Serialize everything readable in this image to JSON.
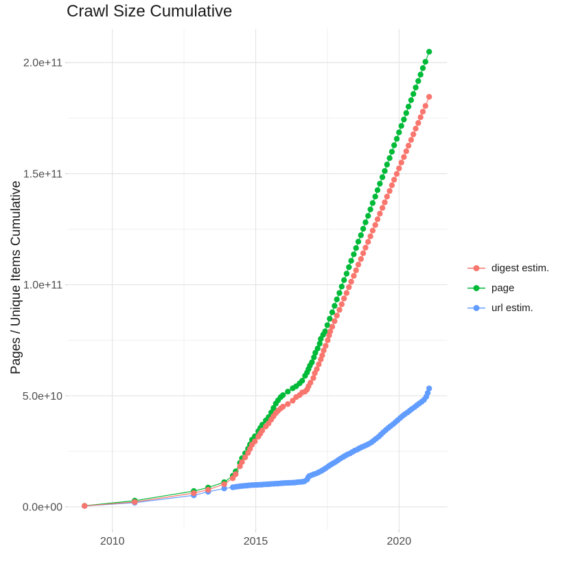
{
  "title": "Crawl Size Cumulative",
  "colors": {
    "background": "#FFFFFF",
    "major_grid": "#E4E4E4",
    "minor_grid": "#F0F0F0",
    "tick_mark": "#D2D2D2",
    "axis_text": "#4D4D4D",
    "text": "#1A1A1A",
    "digest": "#F8766D",
    "page": "#00BA38",
    "url": "#619CFF"
  },
  "chart_data": {
    "type": "scatter",
    "title": "Crawl Size Cumulative",
    "xlabel": "",
    "ylabel": "Pages / Unique Items Cumulative",
    "value_unit": "1e9 (billions); y axis shown in scientific notation",
    "xlim": [
      2008.45,
      2021.68
    ],
    "ylim_e9": [
      -10.2,
      215.2
    ],
    "grid": true,
    "legend_position": "right",
    "x_ticks": [
      {
        "label": "2010",
        "value": 2010
      },
      {
        "label": "2015",
        "value": 2015
      },
      {
        "label": "2020",
        "value": 2020
      }
    ],
    "x_minor": [
      2012.5,
      2017.5
    ],
    "y_ticks": [
      {
        "label": "0.0e+00",
        "value_e9": 0
      },
      {
        "label": "5.0e+10",
        "value_e9": 50
      },
      {
        "label": "1.0e+11",
        "value_e9": 100
      },
      {
        "label": "1.5e+11",
        "value_e9": 150
      },
      {
        "label": "2.0e+11",
        "value_e9": 200
      }
    ],
    "y_minor_e9": [
      25,
      75,
      125,
      175
    ],
    "series": [
      {
        "name": "digest estim.",
        "color": "#F8766D",
        "points": [
          [
            2009.03,
            0.45
          ],
          [
            2010.78,
            2.2
          ],
          [
            2012.84,
            6.2
          ],
          [
            2013.34,
            7.7
          ],
          [
            2013.9,
            10.2
          ],
          [
            2014.2,
            12.9
          ],
          [
            2014.3,
            14.7
          ],
          [
            2014.45,
            18.3
          ],
          [
            2014.52,
            20.2
          ],
          [
            2014.63,
            22.3
          ],
          [
            2014.73,
            24.3
          ],
          [
            2014.8,
            26.1
          ],
          [
            2014.87,
            28.0
          ],
          [
            2014.97,
            29.5
          ],
          [
            2015.09,
            31.6
          ],
          [
            2015.16,
            33.0
          ],
          [
            2015.23,
            34.4
          ],
          [
            2015.35,
            36.2
          ],
          [
            2015.45,
            37.6
          ],
          [
            2015.54,
            39.3
          ],
          [
            2015.62,
            40.8
          ],
          [
            2015.7,
            42.2
          ],
          [
            2015.78,
            43.3
          ],
          [
            2015.87,
            44.3
          ],
          [
            2015.95,
            45.1
          ],
          [
            2016.12,
            46.3
          ],
          [
            2016.29,
            47.8
          ],
          [
            2016.41,
            49.4
          ],
          [
            2016.53,
            50.3
          ],
          [
            2016.62,
            51.5
          ],
          [
            2016.72,
            51.9
          ],
          [
            2016.79,
            52.8
          ],
          [
            2016.84,
            54.3
          ],
          [
            2016.91,
            55.9
          ],
          [
            2017.01,
            58.0
          ],
          [
            2017.06,
            60.2
          ],
          [
            2017.13,
            62.0
          ],
          [
            2017.2,
            64.2
          ],
          [
            2017.27,
            66.4
          ],
          [
            2017.32,
            68.2
          ],
          [
            2017.37,
            70.4
          ],
          [
            2017.44,
            72.5
          ],
          [
            2017.51,
            75.0
          ],
          [
            2017.56,
            77.2
          ],
          [
            2017.6,
            79.0
          ],
          [
            2017.67,
            81.1
          ],
          [
            2017.75,
            83.6
          ],
          [
            2017.83,
            86.1
          ],
          [
            2017.92,
            88.7
          ],
          [
            2018.0,
            91.2
          ],
          [
            2018.08,
            93.8
          ],
          [
            2018.17,
            96.3
          ],
          [
            2018.25,
            98.9
          ],
          [
            2018.33,
            101.4
          ],
          [
            2018.42,
            104.0
          ],
          [
            2018.5,
            106.5
          ],
          [
            2018.58,
            109.1
          ],
          [
            2018.67,
            111.6
          ],
          [
            2018.75,
            114.2
          ],
          [
            2018.83,
            116.7
          ],
          [
            2018.92,
            119.3
          ],
          [
            2019.0,
            121.8
          ],
          [
            2019.08,
            124.4
          ],
          [
            2019.17,
            126.9
          ],
          [
            2019.25,
            129.5
          ],
          [
            2019.33,
            132.0
          ],
          [
            2019.42,
            134.6
          ],
          [
            2019.5,
            137.1
          ],
          [
            2019.58,
            139.7
          ],
          [
            2019.67,
            142.2
          ],
          [
            2019.75,
            144.8
          ],
          [
            2019.83,
            147.3
          ],
          [
            2019.92,
            149.9
          ],
          [
            2020.0,
            152.4
          ],
          [
            2020.08,
            155.0
          ],
          [
            2020.17,
            157.5
          ],
          [
            2020.25,
            160.1
          ],
          [
            2020.33,
            162.6
          ],
          [
            2020.42,
            165.2
          ],
          [
            2020.5,
            167.7
          ],
          [
            2020.58,
            170.3
          ],
          [
            2020.67,
            172.8
          ],
          [
            2020.75,
            175.4
          ],
          [
            2020.83,
            177.9
          ],
          [
            2020.92,
            180.5
          ],
          [
            2021.05,
            184.6
          ]
        ]
      },
      {
        "name": "page",
        "color": "#00BA38",
        "points": [
          [
            2009.03,
            0.5
          ],
          [
            2010.78,
            2.8
          ],
          [
            2012.84,
            7.1
          ],
          [
            2013.34,
            8.7
          ],
          [
            2013.9,
            11.1
          ],
          [
            2014.2,
            14.0
          ],
          [
            2014.3,
            16.0
          ],
          [
            2014.45,
            19.8
          ],
          [
            2014.52,
            21.9
          ],
          [
            2014.63,
            24.1
          ],
          [
            2014.73,
            26.2
          ],
          [
            2014.8,
            28.1
          ],
          [
            2014.87,
            30.2
          ],
          [
            2014.97,
            31.8
          ],
          [
            2015.09,
            34.0
          ],
          [
            2015.16,
            35.5
          ],
          [
            2015.23,
            37.0
          ],
          [
            2015.35,
            38.9
          ],
          [
            2015.45,
            40.4
          ],
          [
            2015.54,
            42.5
          ],
          [
            2015.62,
            44.5
          ],
          [
            2015.7,
            46.5
          ],
          [
            2015.78,
            48.0
          ],
          [
            2015.87,
            49.4
          ],
          [
            2015.95,
            50.3
          ],
          [
            2016.12,
            51.9
          ],
          [
            2016.29,
            53.4
          ],
          [
            2016.41,
            54.3
          ],
          [
            2016.53,
            55.6
          ],
          [
            2016.62,
            56.8
          ],
          [
            2016.72,
            59.0
          ],
          [
            2016.79,
            60.5
          ],
          [
            2016.84,
            62.0
          ],
          [
            2016.89,
            63.6
          ],
          [
            2016.96,
            65.1
          ],
          [
            2017.03,
            67.3
          ],
          [
            2017.08,
            69.4
          ],
          [
            2017.16,
            71.3
          ],
          [
            2017.23,
            73.5
          ],
          [
            2017.27,
            75.6
          ],
          [
            2017.35,
            77.5
          ],
          [
            2017.42,
            79.0
          ],
          [
            2017.5,
            81.8
          ],
          [
            2017.58,
            84.7
          ],
          [
            2017.67,
            87.6
          ],
          [
            2017.75,
            90.5
          ],
          [
            2017.83,
            93.4
          ],
          [
            2017.92,
            96.3
          ],
          [
            2018.0,
            99.2
          ],
          [
            2018.08,
            102.1
          ],
          [
            2018.17,
            105.0
          ],
          [
            2018.25,
            107.9
          ],
          [
            2018.33,
            110.8
          ],
          [
            2018.42,
            113.7
          ],
          [
            2018.5,
            116.5
          ],
          [
            2018.58,
            119.4
          ],
          [
            2018.67,
            122.3
          ],
          [
            2018.75,
            125.2
          ],
          [
            2018.83,
            128.1
          ],
          [
            2018.92,
            131.0
          ],
          [
            2019.0,
            133.9
          ],
          [
            2019.08,
            136.8
          ],
          [
            2019.17,
            139.7
          ],
          [
            2019.25,
            142.6
          ],
          [
            2019.33,
            145.5
          ],
          [
            2019.42,
            148.4
          ],
          [
            2019.5,
            151.2
          ],
          [
            2019.58,
            154.1
          ],
          [
            2019.67,
            157.0
          ],
          [
            2019.75,
            159.9
          ],
          [
            2019.83,
            162.8
          ],
          [
            2019.92,
            165.7
          ],
          [
            2020.0,
            168.6
          ],
          [
            2020.08,
            171.5
          ],
          [
            2020.17,
            174.4
          ],
          [
            2020.25,
            177.3
          ],
          [
            2020.33,
            180.2
          ],
          [
            2020.42,
            183.1
          ],
          [
            2020.5,
            185.9
          ],
          [
            2020.58,
            188.8
          ],
          [
            2020.67,
            191.7
          ],
          [
            2020.75,
            194.6
          ],
          [
            2020.83,
            197.5
          ],
          [
            2020.92,
            200.4
          ],
          [
            2021.05,
            204.9
          ]
        ]
      },
      {
        "name": "url estim.",
        "color": "#619CFF",
        "points": [
          [
            2009.03,
            0.4
          ],
          [
            2010.78,
            1.9
          ],
          [
            2012.84,
            5.2
          ],
          [
            2013.34,
            6.8
          ],
          [
            2013.9,
            8.3
          ],
          [
            2014.2,
            8.8
          ],
          [
            2014.28,
            9.0
          ],
          [
            2014.37,
            9.15
          ],
          [
            2014.45,
            9.3
          ],
          [
            2014.53,
            9.4
          ],
          [
            2014.62,
            9.5
          ],
          [
            2014.7,
            9.6
          ],
          [
            2014.78,
            9.7
          ],
          [
            2014.87,
            9.8
          ],
          [
            2014.95,
            9.85
          ],
          [
            2015.03,
            9.9
          ],
          [
            2015.12,
            9.95
          ],
          [
            2015.2,
            10.0
          ],
          [
            2015.28,
            10.1
          ],
          [
            2015.37,
            10.15
          ],
          [
            2015.45,
            10.2
          ],
          [
            2015.53,
            10.3
          ],
          [
            2015.62,
            10.4
          ],
          [
            2015.7,
            10.45
          ],
          [
            2015.78,
            10.5
          ],
          [
            2015.87,
            10.6
          ],
          [
            2015.95,
            10.7
          ],
          [
            2016.03,
            10.75
          ],
          [
            2016.12,
            10.8
          ],
          [
            2016.2,
            10.85
          ],
          [
            2016.29,
            10.9
          ],
          [
            2016.37,
            10.95
          ],
          [
            2016.45,
            11.1
          ],
          [
            2016.53,
            11.2
          ],
          [
            2016.62,
            11.3
          ],
          [
            2016.7,
            11.5
          ],
          [
            2016.79,
            12.3
          ],
          [
            2016.83,
            13.3
          ],
          [
            2016.87,
            13.9
          ],
          [
            2016.95,
            14.3
          ],
          [
            2017.03,
            14.7
          ],
          [
            2017.12,
            15.1
          ],
          [
            2017.2,
            15.6
          ],
          [
            2017.29,
            16.2
          ],
          [
            2017.37,
            16.8
          ],
          [
            2017.45,
            17.5
          ],
          [
            2017.54,
            18.3
          ],
          [
            2017.62,
            19.0
          ],
          [
            2017.7,
            19.6
          ],
          [
            2017.79,
            20.3
          ],
          [
            2017.87,
            21.0
          ],
          [
            2017.95,
            21.7
          ],
          [
            2018.04,
            22.4
          ],
          [
            2018.12,
            23.0
          ],
          [
            2018.2,
            23.6
          ],
          [
            2018.29,
            24.1
          ],
          [
            2018.37,
            24.7
          ],
          [
            2018.45,
            25.3
          ],
          [
            2018.54,
            25.8
          ],
          [
            2018.62,
            26.4
          ],
          [
            2018.7,
            26.9
          ],
          [
            2018.79,
            27.4
          ],
          [
            2018.87,
            27.9
          ],
          [
            2018.95,
            28.4
          ],
          [
            2019.04,
            29.1
          ],
          [
            2019.12,
            29.9
          ],
          [
            2019.2,
            30.7
          ],
          [
            2019.29,
            31.6
          ],
          [
            2019.37,
            32.6
          ],
          [
            2019.45,
            33.6
          ],
          [
            2019.54,
            34.6
          ],
          [
            2019.62,
            35.5
          ],
          [
            2019.7,
            36.3
          ],
          [
            2019.79,
            37.2
          ],
          [
            2019.87,
            38.1
          ],
          [
            2019.95,
            39.0
          ],
          [
            2020.04,
            40.0
          ],
          [
            2020.12,
            40.9
          ],
          [
            2020.2,
            41.7
          ],
          [
            2020.29,
            42.5
          ],
          [
            2020.37,
            43.3
          ],
          [
            2020.45,
            44.1
          ],
          [
            2020.54,
            44.9
          ],
          [
            2020.62,
            45.7
          ],
          [
            2020.7,
            46.5
          ],
          [
            2020.79,
            47.3
          ],
          [
            2020.87,
            48.2
          ],
          [
            2020.95,
            49.6
          ],
          [
            2021.0,
            51.3
          ],
          [
            2021.05,
            53.3
          ]
        ]
      }
    ]
  }
}
